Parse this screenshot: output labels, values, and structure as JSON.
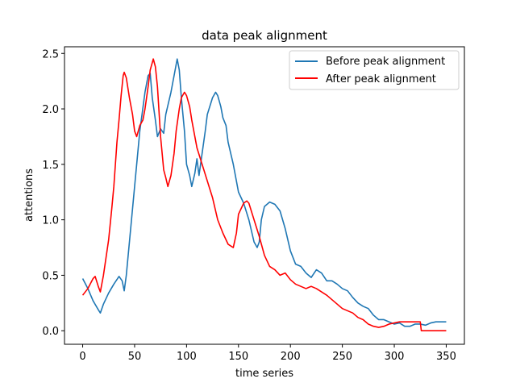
{
  "chart_data": {
    "type": "line",
    "title": "data peak alignment",
    "xlabel": "time series",
    "ylabel": "attentions",
    "xlim": [
      -17.5,
      367.5
    ],
    "ylim": [
      -0.122,
      2.56
    ],
    "xticks": [
      0,
      50,
      100,
      150,
      200,
      250,
      300,
      350
    ],
    "yticks": [
      0.0,
      0.5,
      1.0,
      1.5,
      2.0,
      2.5
    ],
    "ytick_labels": [
      "0.0",
      "0.5",
      "1.0",
      "1.5",
      "2.0",
      "2.5"
    ],
    "grid": false,
    "legend_position": "top-right",
    "series": [
      {
        "name": "Before peak alignment",
        "color": "#1f77b4",
        "points": [
          [
            0,
            0.47
          ],
          [
            5,
            0.38
          ],
          [
            10,
            0.27
          ],
          [
            15,
            0.19
          ],
          [
            17,
            0.16
          ],
          [
            20,
            0.24
          ],
          [
            25,
            0.34
          ],
          [
            30,
            0.42
          ],
          [
            35,
            0.49
          ],
          [
            38,
            0.45
          ],
          [
            40,
            0.36
          ],
          [
            42,
            0.5
          ],
          [
            45,
            0.8
          ],
          [
            50,
            1.3
          ],
          [
            55,
            1.8
          ],
          [
            60,
            2.15
          ],
          [
            63,
            2.3
          ],
          [
            65,
            2.32
          ],
          [
            67,
            2.1
          ],
          [
            70,
            1.9
          ],
          [
            72,
            1.75
          ],
          [
            75,
            1.82
          ],
          [
            78,
            1.78
          ],
          [
            80,
            1.95
          ],
          [
            85,
            2.15
          ],
          [
            88,
            2.3
          ],
          [
            91,
            2.45
          ],
          [
            93,
            2.35
          ],
          [
            95,
            2.1
          ],
          [
            98,
            1.8
          ],
          [
            100,
            1.5
          ],
          [
            103,
            1.4
          ],
          [
            105,
            1.3
          ],
          [
            108,
            1.42
          ],
          [
            110,
            1.55
          ],
          [
            112,
            1.4
          ],
          [
            115,
            1.6
          ],
          [
            118,
            1.8
          ],
          [
            120,
            1.95
          ],
          [
            125,
            2.1
          ],
          [
            128,
            2.15
          ],
          [
            130,
            2.12
          ],
          [
            133,
            2.02
          ],
          [
            135,
            1.92
          ],
          [
            138,
            1.85
          ],
          [
            140,
            1.7
          ],
          [
            145,
            1.5
          ],
          [
            148,
            1.35
          ],
          [
            150,
            1.25
          ],
          [
            155,
            1.15
          ],
          [
            160,
            1.0
          ],
          [
            165,
            0.8
          ],
          [
            168,
            0.75
          ],
          [
            170,
            0.8
          ],
          [
            172,
            1.0
          ],
          [
            175,
            1.12
          ],
          [
            180,
            1.16
          ],
          [
            185,
            1.14
          ],
          [
            190,
            1.08
          ],
          [
            195,
            0.92
          ],
          [
            200,
            0.72
          ],
          [
            205,
            0.6
          ],
          [
            210,
            0.58
          ],
          [
            215,
            0.52
          ],
          [
            220,
            0.48
          ],
          [
            225,
            0.55
          ],
          [
            230,
            0.52
          ],
          [
            235,
            0.45
          ],
          [
            240,
            0.45
          ],
          [
            245,
            0.42
          ],
          [
            250,
            0.38
          ],
          [
            255,
            0.36
          ],
          [
            260,
            0.3
          ],
          [
            265,
            0.25
          ],
          [
            270,
            0.22
          ],
          [
            275,
            0.2
          ],
          [
            280,
            0.14
          ],
          [
            285,
            0.1
          ],
          [
            290,
            0.1
          ],
          [
            295,
            0.08
          ],
          [
            300,
            0.06
          ],
          [
            305,
            0.07
          ],
          [
            310,
            0.04
          ],
          [
            315,
            0.04
          ],
          [
            320,
            0.06
          ],
          [
            325,
            0.06
          ],
          [
            330,
            0.05
          ],
          [
            335,
            0.07
          ],
          [
            340,
            0.08
          ],
          [
            345,
            0.08
          ],
          [
            350,
            0.08
          ]
        ]
      },
      {
        "name": "After peak alignment",
        "color": "#ff0000",
        "points": [
          [
            0,
            0.32
          ],
          [
            5,
            0.38
          ],
          [
            10,
            0.47
          ],
          [
            12,
            0.49
          ],
          [
            15,
            0.4
          ],
          [
            17,
            0.35
          ],
          [
            20,
            0.5
          ],
          [
            25,
            0.82
          ],
          [
            28,
            1.1
          ],
          [
            30,
            1.3
          ],
          [
            33,
            1.7
          ],
          [
            35,
            1.9
          ],
          [
            37,
            2.12
          ],
          [
            39,
            2.3
          ],
          [
            40,
            2.33
          ],
          [
            42,
            2.28
          ],
          [
            45,
            2.1
          ],
          [
            48,
            1.95
          ],
          [
            50,
            1.8
          ],
          [
            52,
            1.75
          ],
          [
            55,
            1.85
          ],
          [
            58,
            1.9
          ],
          [
            60,
            2.0
          ],
          [
            63,
            2.2
          ],
          [
            65,
            2.35
          ],
          [
            68,
            2.45
          ],
          [
            70,
            2.38
          ],
          [
            72,
            2.2
          ],
          [
            75,
            1.75
          ],
          [
            78,
            1.45
          ],
          [
            80,
            1.38
          ],
          [
            82,
            1.3
          ],
          [
            85,
            1.4
          ],
          [
            88,
            1.6
          ],
          [
            90,
            1.8
          ],
          [
            93,
            2.0
          ],
          [
            95,
            2.1
          ],
          [
            98,
            2.15
          ],
          [
            100,
            2.12
          ],
          [
            103,
            2.02
          ],
          [
            105,
            1.9
          ],
          [
            108,
            1.75
          ],
          [
            110,
            1.65
          ],
          [
            115,
            1.5
          ],
          [
            120,
            1.35
          ],
          [
            125,
            1.2
          ],
          [
            130,
            1.0
          ],
          [
            135,
            0.88
          ],
          [
            140,
            0.78
          ],
          [
            145,
            0.75
          ],
          [
            148,
            0.88
          ],
          [
            150,
            1.05
          ],
          [
            155,
            1.15
          ],
          [
            158,
            1.17
          ],
          [
            160,
            1.15
          ],
          [
            165,
            1.0
          ],
          [
            170,
            0.85
          ],
          [
            175,
            0.68
          ],
          [
            180,
            0.58
          ],
          [
            185,
            0.55
          ],
          [
            190,
            0.5
          ],
          [
            195,
            0.52
          ],
          [
            200,
            0.46
          ],
          [
            205,
            0.42
          ],
          [
            210,
            0.4
          ],
          [
            215,
            0.38
          ],
          [
            220,
            0.4
          ],
          [
            225,
            0.38
          ],
          [
            230,
            0.35
          ],
          [
            235,
            0.32
          ],
          [
            240,
            0.28
          ],
          [
            245,
            0.24
          ],
          [
            250,
            0.2
          ],
          [
            255,
            0.18
          ],
          [
            260,
            0.16
          ],
          [
            265,
            0.12
          ],
          [
            270,
            0.1
          ],
          [
            275,
            0.06
          ],
          [
            280,
            0.04
          ],
          [
            285,
            0.03
          ],
          [
            290,
            0.04
          ],
          [
            295,
            0.06
          ],
          [
            300,
            0.07
          ],
          [
            305,
            0.08
          ],
          [
            310,
            0.08
          ],
          [
            315,
            0.08
          ],
          [
            320,
            0.08
          ],
          [
            325,
            0.08
          ],
          [
            326,
            0.0
          ],
          [
            330,
            0.0
          ],
          [
            335,
            0.0
          ],
          [
            340,
            0.0
          ],
          [
            345,
            0.0
          ],
          [
            350,
            0.0
          ]
        ]
      }
    ]
  }
}
